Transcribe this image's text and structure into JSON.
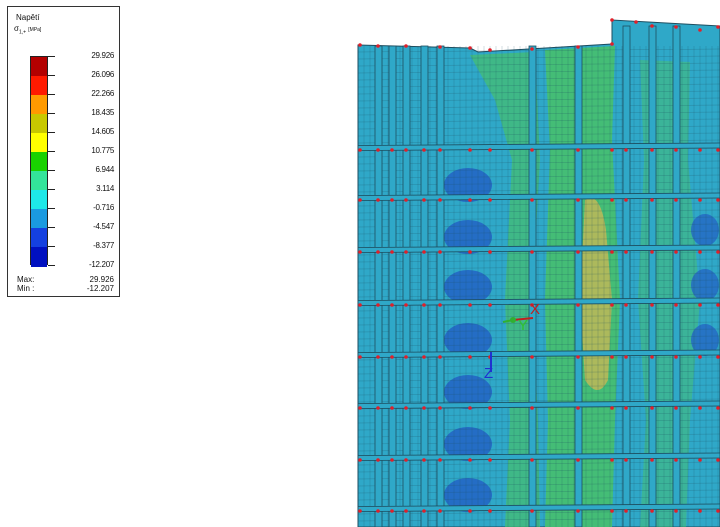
{
  "legend": {
    "title": "Napětí",
    "quantity_symbol": "σ",
    "quantity_subscript": "1,+",
    "unit": "[MPa]",
    "levels": [
      "29.926",
      "26.096",
      "22.266",
      "18.435",
      "14.605",
      "10.775",
      "6.944",
      "3.114",
      "-0.716",
      "-4.547",
      "-8.377",
      "-12.207"
    ],
    "colors": [
      "#b30000",
      "#ff1a00",
      "#ff9a00",
      "#c8c800",
      "#ffff00",
      "#19d200",
      "#33e49a",
      "#1ee8e8",
      "#1a9ae0",
      "#1440e0",
      "#0010c0"
    ],
    "max_label": "Max:",
    "max_value": "29.926",
    "min_label": "Min :",
    "min_value": "-12.207"
  },
  "model_view": {
    "axes": {
      "x_label": "X",
      "y_label": "Y",
      "z_label": "Z"
    },
    "colors": {
      "mesh_base": "#2fa8c8",
      "low_stress_patch": "#2466c4",
      "mid_stress_band": "#46be72",
      "high_stress_band": "#b8b85a",
      "mesh_line": "#1d4e60",
      "node_marker": "#e0202a"
    }
  }
}
